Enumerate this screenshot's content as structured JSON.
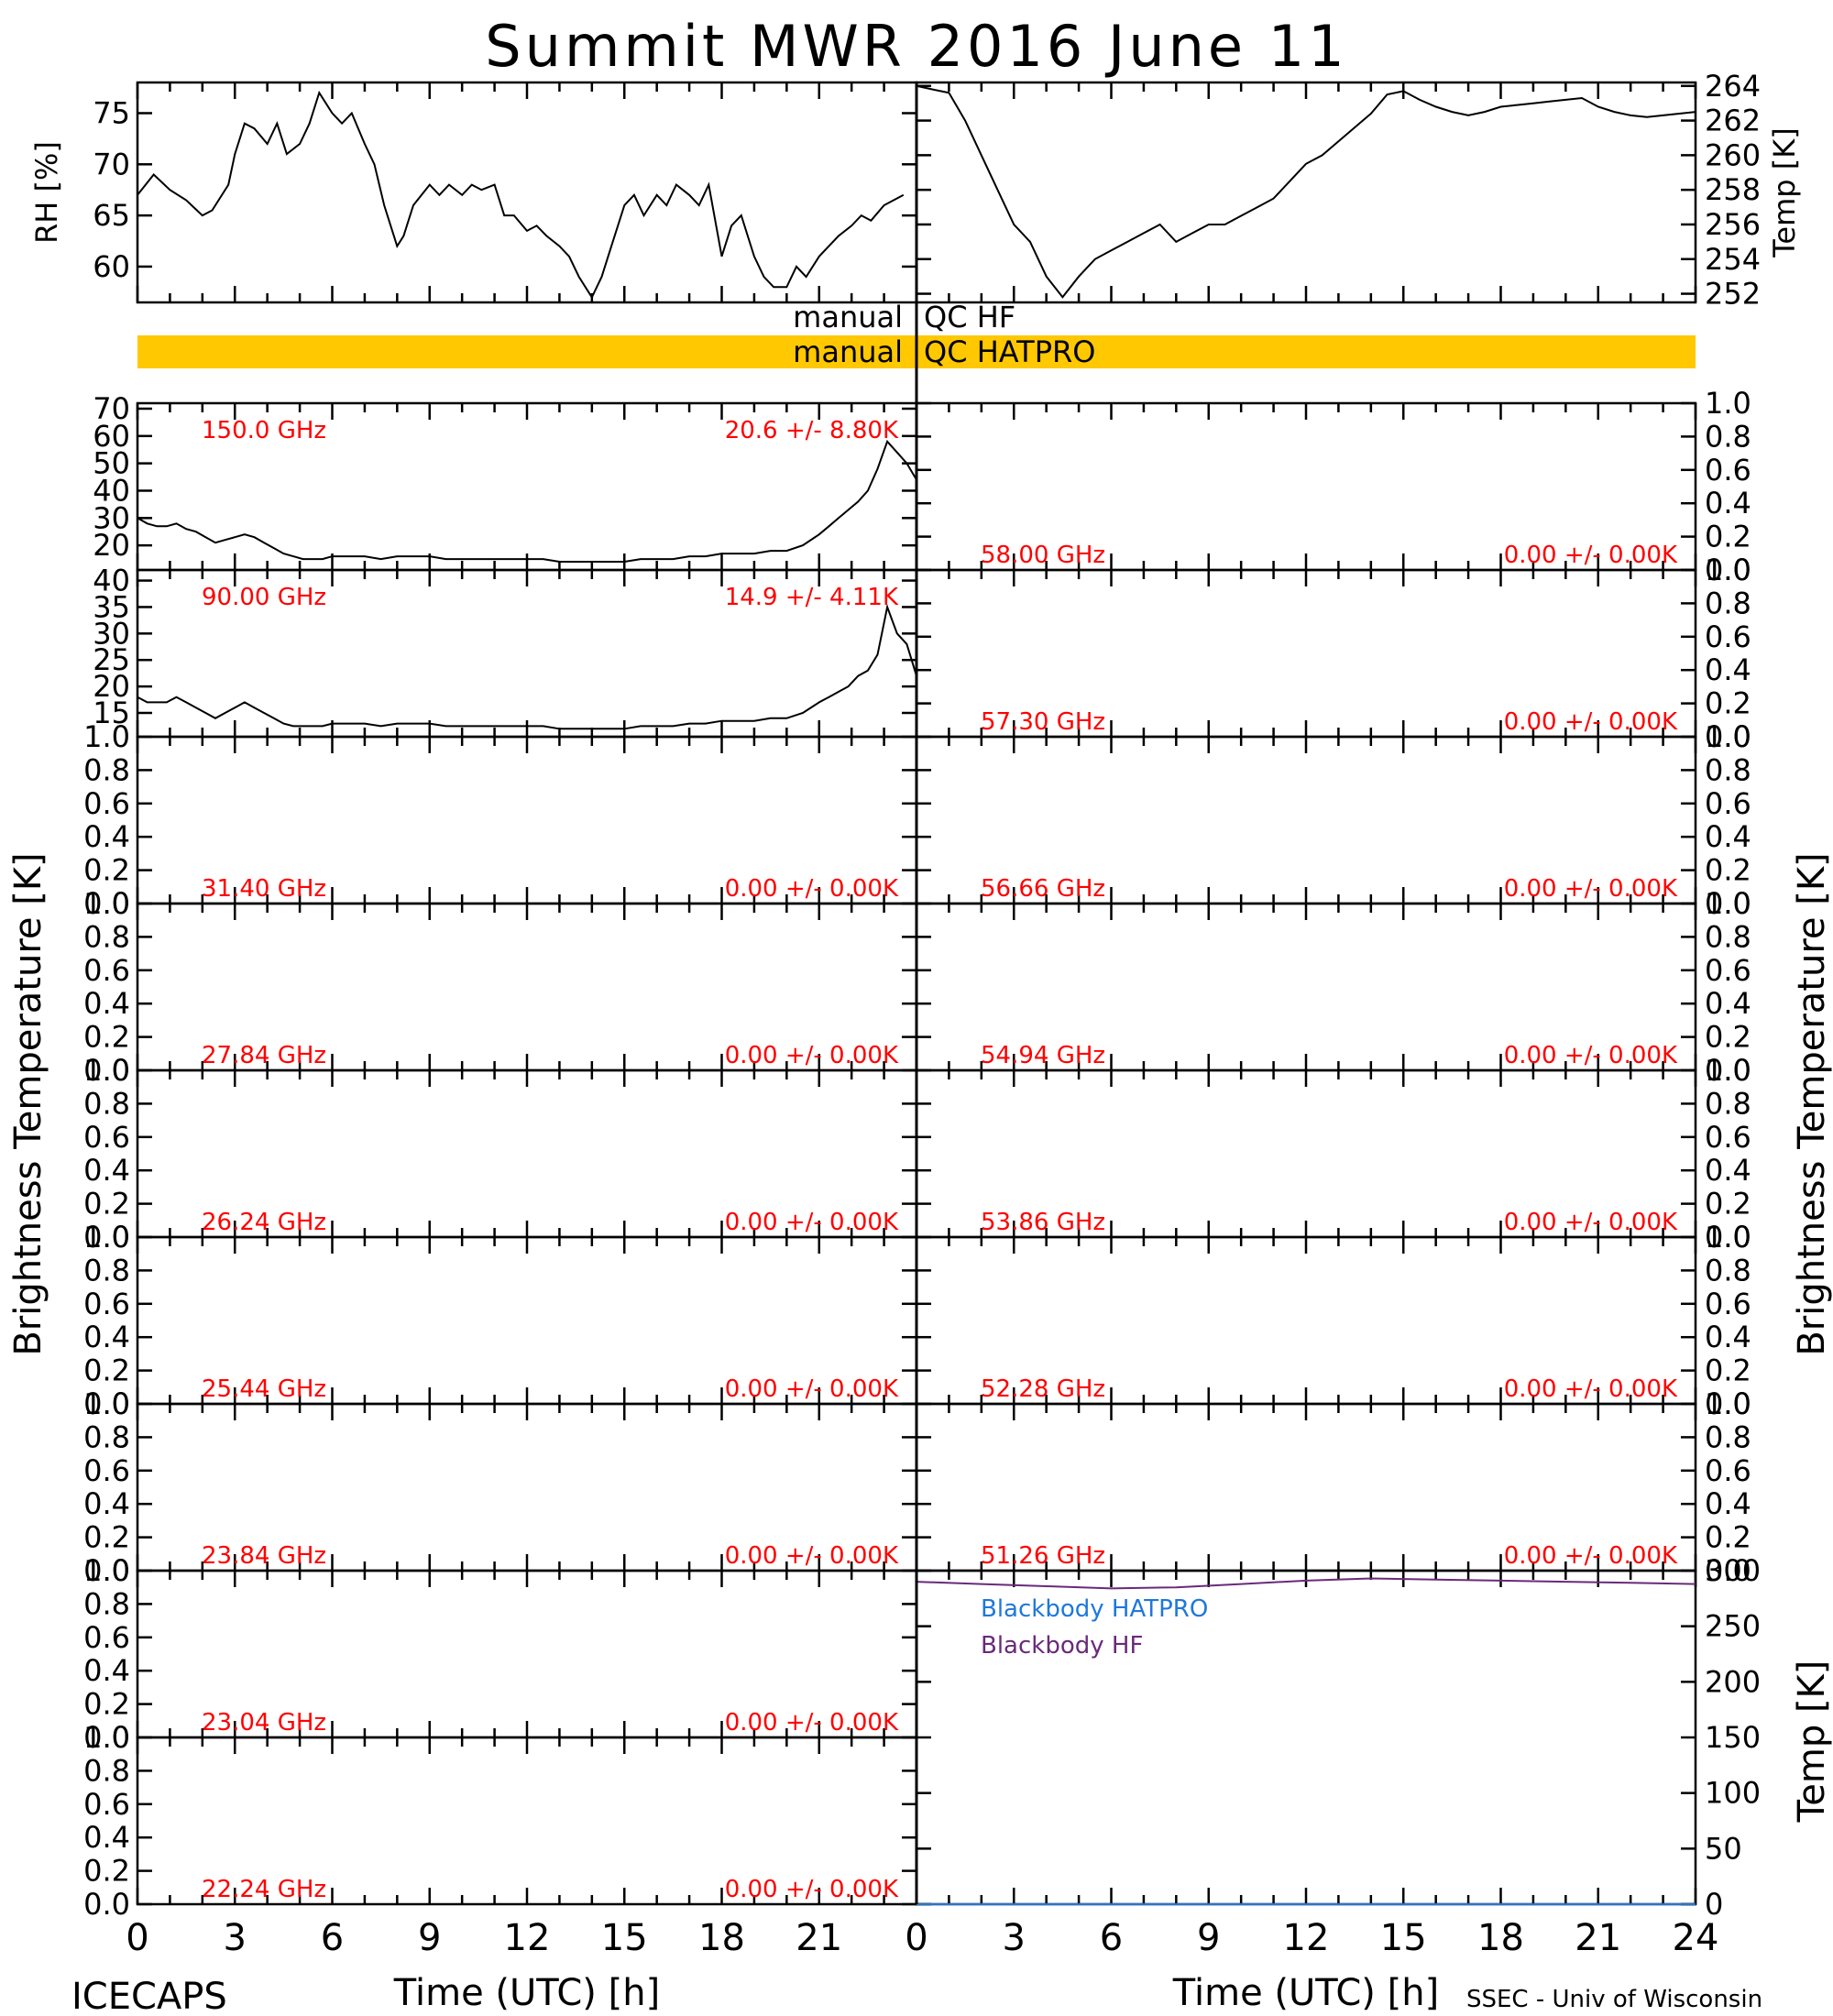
{
  "title": "Summit MWR 2016 June 11",
  "footer": {
    "left": "ICECAPS",
    "right": "SSEC - Univ of Wisconsin"
  },
  "x_axis": {
    "label": "Time (UTC) [h]",
    "range": [
      0,
      24
    ],
    "ticks": [
      "0",
      "3",
      "6",
      "9",
      "12",
      "15",
      "18",
      "21"
    ],
    "ticks_right": [
      "0",
      "3",
      "6",
      "9",
      "12",
      "15",
      "18",
      "21",
      "24"
    ]
  },
  "side_labels": {
    "left": "Brightness Temperature [K]",
    "right": "Brightness Temperature [K]"
  },
  "qc_bars": [
    {
      "label": "manual QC HF",
      "color": "#ffffff"
    },
    {
      "label": "manual QC HATPRO",
      "color": "#ffc800"
    }
  ],
  "colors": {
    "stat_text": "#ff0000",
    "qc_fill": "#ffc800",
    "blackbody_hatpro": "#1e78dc",
    "blackbody_hf": "#6a2a7a"
  },
  "chart_data": [
    {
      "id": "rh",
      "type": "line",
      "ylabel": "RH [%]",
      "ylim": [
        56.5,
        78
      ],
      "yticks": [
        "60",
        "65",
        "70",
        "75"
      ],
      "x": [
        0,
        0.5,
        1,
        1.5,
        2,
        2.3,
        2.8,
        3,
        3.3,
        3.6,
        4,
        4.3,
        4.6,
        5,
        5.3,
        5.6,
        6,
        6.3,
        6.6,
        7,
        7.3,
        7.6,
        8,
        8.2,
        8.5,
        9,
        9.3,
        9.6,
        10,
        10.3,
        10.6,
        11,
        11.3,
        11.6,
        12,
        12.3,
        12.6,
        13,
        13.3,
        13.6,
        14,
        14.3,
        14.6,
        15,
        15.3,
        15.6,
        16,
        16.3,
        16.6,
        17,
        17.3,
        17.6,
        18,
        18.3,
        18.6,
        19,
        19.3,
        19.6,
        20,
        20.3,
        20.6,
        21,
        21.3,
        21.6,
        22,
        22.3,
        22.6,
        23,
        23.3,
        23.6
      ],
      "values": [
        67,
        69,
        67.5,
        66.5,
        65,
        65.5,
        68,
        71,
        74,
        73.5,
        72,
        74,
        71,
        72,
        74,
        77,
        75,
        74,
        75,
        72,
        70,
        66,
        62,
        63,
        66,
        68,
        67,
        68,
        67,
        68,
        67.5,
        68,
        65,
        65,
        63.5,
        64,
        63,
        62,
        61,
        59,
        57,
        59,
        62,
        66,
        67,
        65,
        67,
        66,
        68,
        67,
        66,
        68,
        61,
        64,
        65,
        61,
        59,
        58,
        58,
        60,
        59,
        61,
        62,
        63,
        64,
        65,
        64.5,
        66,
        66.5,
        67
      ]
    },
    {
      "id": "temp",
      "type": "line",
      "ylabel": "Temp [K]",
      "ylim": [
        251.5,
        264.2
      ],
      "yticks": [
        "252",
        "254",
        "256",
        "258",
        "260",
        "262",
        "264"
      ],
      "x": [
        0,
        0.5,
        1,
        1.5,
        2,
        2.5,
        3,
        3.5,
        4,
        4.5,
        5,
        5.5,
        6,
        6.5,
        7,
        7.5,
        8,
        8.5,
        9,
        9.5,
        10,
        10.5,
        11,
        11.5,
        12,
        12.5,
        13,
        13.5,
        14,
        14.5,
        15,
        15.5,
        16,
        16.5,
        17,
        17.5,
        18,
        18.5,
        19,
        19.5,
        20,
        20.5,
        21,
        21.5,
        22,
        22.5,
        23,
        23.5,
        24
      ],
      "values": [
        264,
        263.8,
        263.6,
        262,
        260,
        258,
        256,
        255,
        253,
        251.8,
        253,
        254,
        254.5,
        255,
        255.5,
        256,
        255,
        255.5,
        256,
        256,
        256.5,
        257,
        257.5,
        258.5,
        259.5,
        260,
        260.8,
        261.6,
        262.4,
        263.5,
        263.7,
        263.2,
        262.8,
        262.5,
        262.3,
        262.5,
        262.8,
        262.9,
        263,
        263.1,
        263.2,
        263.3,
        262.8,
        262.5,
        262.3,
        262.2,
        262.3,
        262.4,
        262.5
      ]
    },
    {
      "id": "ch150",
      "type": "line",
      "freq": "150.0 GHz",
      "stat": "20.6 +/-  8.80K",
      "ylim": [
        11,
        72
      ],
      "yticks": [
        "20",
        "30",
        "40",
        "50",
        "60",
        "70"
      ],
      "x": [
        0,
        0.3,
        0.6,
        0.9,
        1.2,
        1.5,
        1.8,
        2.1,
        2.4,
        2.7,
        3,
        3.3,
        3.6,
        3.9,
        4.2,
        4.5,
        4.8,
        5.1,
        5.4,
        5.7,
        6,
        6.5,
        7,
        7.5,
        8,
        8.5,
        9,
        9.5,
        10,
        10.5,
        11,
        11.5,
        12,
        12.5,
        13,
        13.5,
        14,
        14.5,
        15,
        15.5,
        16,
        16.5,
        17,
        17.5,
        18,
        18.5,
        19,
        19.5,
        20,
        20.5,
        21,
        21.3,
        21.6,
        21.9,
        22.2,
        22.5,
        22.8,
        23.1,
        23.4,
        23.7,
        24
      ],
      "values": [
        30,
        28,
        27,
        27,
        28,
        26,
        25,
        23,
        21,
        22,
        23,
        24,
        23,
        21,
        19,
        17,
        16,
        15,
        15,
        15,
        16,
        16,
        16,
        15,
        16,
        16,
        16,
        15,
        15,
        15,
        15,
        15,
        15,
        15,
        14,
        14,
        14,
        14,
        14,
        15,
        15,
        15,
        16,
        16,
        17,
        17,
        17,
        18,
        18,
        20,
        24,
        27,
        30,
        33,
        36,
        40,
        48,
        58,
        54,
        50,
        44
      ]
    },
    {
      "id": "ch90",
      "type": "line",
      "freq": "90.00 GHz",
      "stat": "14.9 +/-  4.11K",
      "ylim": [
        10.5,
        42
      ],
      "yticks": [
        "15",
        "20",
        "25",
        "30",
        "35",
        "40"
      ],
      "x": [
        0,
        0.3,
        0.6,
        0.9,
        1.2,
        1.5,
        1.8,
        2.1,
        2.4,
        2.7,
        3,
        3.3,
        3.6,
        3.9,
        4.2,
        4.5,
        4.8,
        5.1,
        5.4,
        5.7,
        6,
        6.5,
        7,
        7.5,
        8,
        8.5,
        9,
        9.5,
        10,
        10.5,
        11,
        11.5,
        12,
        12.5,
        13,
        13.5,
        14,
        14.5,
        15,
        15.5,
        16,
        16.5,
        17,
        17.5,
        18,
        18.5,
        19,
        19.5,
        20,
        20.5,
        21,
        21.3,
        21.6,
        21.9,
        22.2,
        22.5,
        22.8,
        23.1,
        23.4,
        23.7,
        24
      ],
      "values": [
        18,
        17,
        17,
        17,
        18,
        17,
        16,
        15,
        14,
        15,
        16,
        17,
        16,
        15,
        14,
        13,
        12.5,
        12.5,
        12.5,
        12.5,
        13,
        13,
        13,
        12.5,
        13,
        13,
        13,
        12.5,
        12.5,
        12.5,
        12.5,
        12.5,
        12.5,
        12.5,
        12,
        12,
        12,
        12,
        12,
        12.5,
        12.5,
        12.5,
        13,
        13,
        13.5,
        13.5,
        13.5,
        14,
        14,
        15,
        17,
        18,
        19,
        20,
        22,
        23,
        26,
        35,
        30,
        28,
        22
      ]
    },
    {
      "id": "ch31",
      "type": "line",
      "freq": "31.40 GHz",
      "stat": "0.00 +/-  0.00K",
      "ylim": [
        0,
        1
      ]
    },
    {
      "id": "ch27",
      "type": "line",
      "freq": "27.84 GHz",
      "stat": "0.00 +/-  0.00K",
      "ylim": [
        0,
        1
      ]
    },
    {
      "id": "ch26",
      "type": "line",
      "freq": "26.24 GHz",
      "stat": "0.00 +/-  0.00K",
      "ylim": [
        0,
        1
      ]
    },
    {
      "id": "ch25",
      "type": "line",
      "freq": "25.44 GHz",
      "stat": "0.00 +/-  0.00K",
      "ylim": [
        0,
        1
      ]
    },
    {
      "id": "ch2384",
      "type": "line",
      "freq": "23.84 GHz",
      "stat": "0.00 +/-  0.00K",
      "ylim": [
        0,
        1
      ]
    },
    {
      "id": "ch2304",
      "type": "line",
      "freq": "23.04 GHz",
      "stat": "0.00 +/-  0.00K",
      "ylim": [
        0,
        1
      ]
    },
    {
      "id": "ch2224",
      "type": "line",
      "freq": "22.24 GHz",
      "stat": "0.00 +/-  0.00K",
      "ylim": [
        0,
        1
      ]
    },
    {
      "id": "ch58",
      "type": "line",
      "freq": "58.00 GHz",
      "stat": "0.00 +/-  0.00K",
      "ylim": [
        0,
        1
      ]
    },
    {
      "id": "ch5730",
      "type": "line",
      "freq": "57.30 GHz",
      "stat": "0.00 +/-  0.00K",
      "ylim": [
        0,
        1
      ]
    },
    {
      "id": "ch5666",
      "type": "line",
      "freq": "56.66 GHz",
      "stat": "0.00 +/-  0.00K",
      "ylim": [
        0,
        1
      ]
    },
    {
      "id": "ch5494",
      "type": "line",
      "freq": "54.94 GHz",
      "stat": "0.00 +/-  0.00K",
      "ylim": [
        0,
        1
      ]
    },
    {
      "id": "ch5386",
      "type": "line",
      "freq": "53.86 GHz",
      "stat": "0.00 +/-  0.00K",
      "ylim": [
        0,
        1
      ]
    },
    {
      "id": "ch5228",
      "type": "line",
      "freq": "52.28 GHz",
      "stat": "0.00 +/-  0.00K",
      "ylim": [
        0,
        1
      ]
    },
    {
      "id": "ch5126",
      "type": "line",
      "freq": "51.26 GHz",
      "stat": "0.00 +/-  0.00K",
      "ylim": [
        0,
        1
      ]
    },
    {
      "id": "blackbody",
      "type": "line",
      "ylabel": "Temp [K]",
      "ylim": [
        0,
        300
      ],
      "yticks": [
        "0",
        "50",
        "100",
        "150",
        "200",
        "250",
        "300"
      ],
      "series": [
        {
          "name": "Blackbody HATPRO",
          "x": [
            0,
            24
          ],
          "values": [
            0,
            0
          ]
        },
        {
          "name": "Blackbody HF",
          "x": [
            0,
            2,
            4,
            6,
            8,
            10,
            12,
            14,
            16,
            18,
            20,
            22,
            24
          ],
          "values": [
            290,
            288,
            286,
            284,
            285,
            288,
            291,
            293,
            292,
            291,
            290,
            289,
            288
          ]
        }
      ]
    }
  ]
}
